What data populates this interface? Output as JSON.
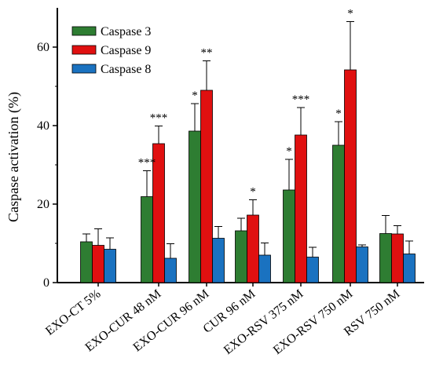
{
  "chart_data": {
    "type": "bar",
    "title": "",
    "xlabel": "",
    "ylabel": "Caspase activation (%)",
    "ylim": [
      0,
      70
    ],
    "yticks": [
      0,
      20,
      40,
      60
    ],
    "grid": false,
    "legend_position": "top-left",
    "categories": [
      "EXO-CT 5%",
      "EXO-CUR 48 nM",
      "EXO-CUR 96 nM",
      "CUR 96 nM",
      "EXO-RSV 375 nM",
      "EXO-RSV 750 nM",
      "RSV 750 nM"
    ],
    "series": [
      {
        "name": "Caspase 3",
        "color": "#2e7d32",
        "values": [
          10.4,
          21.9,
          38.6,
          13.2,
          23.6,
          35.0,
          12.5
        ],
        "errors": [
          2.0,
          6.6,
          7.0,
          3.2,
          7.8,
          6.0,
          4.6
        ],
        "significance": [
          "",
          "***",
          "*",
          "",
          "*",
          "*",
          ""
        ]
      },
      {
        "name": "Caspase 9",
        "color": "#e01010",
        "values": [
          9.5,
          35.4,
          49.0,
          17.2,
          37.6,
          54.2,
          12.4
        ],
        "errors": [
          4.2,
          4.5,
          7.5,
          3.9,
          7.0,
          12.3,
          2.1
        ],
        "significance": [
          "",
          "***",
          "**",
          "*",
          "***",
          "*",
          ""
        ]
      },
      {
        "name": "Caspase 8",
        "color": "#1a72c0",
        "values": [
          8.5,
          6.2,
          11.3,
          7.0,
          6.5,
          9.1,
          7.3
        ],
        "errors": [
          2.9,
          3.7,
          3.0,
          3.1,
          2.5,
          0.5,
          3.3
        ],
        "significance": [
          "",
          "",
          "",
          "",
          "",
          "",
          ""
        ]
      }
    ]
  }
}
